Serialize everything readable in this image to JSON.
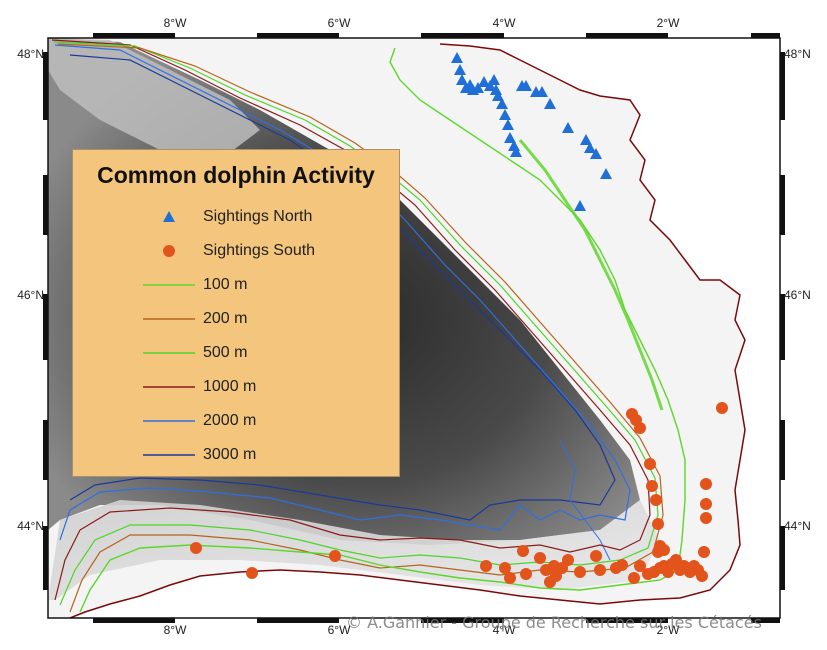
{
  "map": {
    "legend": {
      "title": "Common dolphin Activity",
      "items": [
        {
          "label": "Sightings North",
          "symbol": "triangle",
          "color": "#1f6fd6"
        },
        {
          "label": "Sightings South",
          "symbol": "circle",
          "color": "#e2541b"
        },
        {
          "label": "100 m",
          "symbol": "line",
          "color": "#5ed62c"
        },
        {
          "label": "200 m",
          "symbol": "line",
          "color": "#b5651d"
        },
        {
          "label": "500 m",
          "symbol": "line",
          "color": "#4fd42a"
        },
        {
          "label": "1000 m",
          "symbol": "line",
          "color": "#8b1a1a"
        },
        {
          "label": "2000 m",
          "symbol": "line",
          "color": "#2f6fe0"
        },
        {
          "label": "3000 m",
          "symbol": "line",
          "color": "#1a3a9a"
        }
      ]
    },
    "top_ticks": [
      "8°W",
      "6°W",
      "4°W",
      "2°W"
    ],
    "bottom_ticks": [
      "8°W",
      "6°W",
      "4°W",
      "2°W"
    ],
    "left_ticks": [
      "48°N",
      "46°N",
      "44°N"
    ],
    "right_ticks": [
      "48°N",
      "46°N",
      "44°N"
    ],
    "credit": "© A.Gannier - Groupe de Recherche sur les Cétacés",
    "colors": {
      "land": "#ffffff",
      "coast": "#7a0a0a",
      "legend_bg": "#f4c57c",
      "north_marker": "#1f6fd6",
      "south_marker": "#e2541b"
    }
  }
}
